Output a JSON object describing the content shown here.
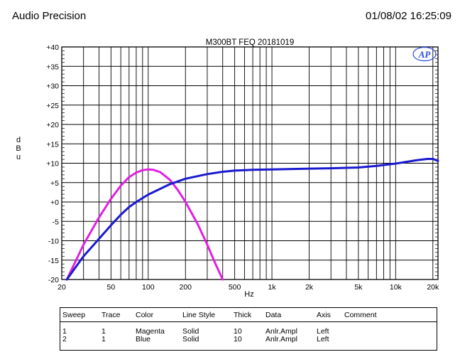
{
  "header": {
    "left": "Audio Precision",
    "right": "01/08/02 16:25:09"
  },
  "chart_data": {
    "type": "line",
    "title": "M300BT  FEQ  20181019",
    "xlabel": "Hz",
    "ylabel": "dBu",
    "x_scale": "log",
    "xlim": [
      20,
      22000
    ],
    "ylim": [
      -20,
      40
    ],
    "grid": true,
    "logo_text": "AP",
    "x_ticks": [
      {
        "value": 20,
        "label": "20"
      },
      {
        "value": 50,
        "label": "50"
      },
      {
        "value": 100,
        "label": "100"
      },
      {
        "value": 200,
        "label": "200"
      },
      {
        "value": 500,
        "label": "500"
      },
      {
        "value": 1000,
        "label": "1k"
      },
      {
        "value": 2000,
        "label": "2k"
      },
      {
        "value": 5000,
        "label": "5k"
      },
      {
        "value": 10000,
        "label": "10k"
      },
      {
        "value": 20000,
        "label": "20k"
      }
    ],
    "x_grid": [
      30,
      40,
      50,
      60,
      70,
      80,
      90,
      100,
      200,
      300,
      400,
      500,
      600,
      700,
      800,
      900,
      1000,
      2000,
      3000,
      4000,
      5000,
      6000,
      7000,
      8000,
      9000,
      10000,
      20000
    ],
    "y_ticks": [
      {
        "value": 40,
        "label": "+40"
      },
      {
        "value": 35,
        "label": "+35"
      },
      {
        "value": 30,
        "label": "+30"
      },
      {
        "value": 25,
        "label": "+25"
      },
      {
        "value": 20,
        "label": "+20"
      },
      {
        "value": 15,
        "label": "+15"
      },
      {
        "value": 10,
        "label": "+10"
      },
      {
        "value": 5,
        "label": "+5"
      },
      {
        "value": 0,
        "label": "+0"
      },
      {
        "value": -5,
        "label": "-5"
      },
      {
        "value": -10,
        "label": "-10"
      },
      {
        "value": -15,
        "label": "-15"
      },
      {
        "value": -20,
        "label": "-20"
      }
    ],
    "series": [
      {
        "color": "#e020e0",
        "points": [
          [
            22,
            -20
          ],
          [
            30,
            -11
          ],
          [
            40,
            -4
          ],
          [
            50,
            0.8
          ],
          [
            60,
            4.2
          ],
          [
            70,
            6.4
          ],
          [
            80,
            7.6
          ],
          [
            90,
            8.2
          ],
          [
            100,
            8.4
          ],
          [
            110,
            8.3
          ],
          [
            125,
            7.7
          ],
          [
            150,
            5.7
          ],
          [
            175,
            2.9
          ],
          [
            200,
            0
          ],
          [
            250,
            -5.6
          ],
          [
            300,
            -11
          ],
          [
            350,
            -16
          ],
          [
            400,
            -20
          ]
        ]
      },
      {
        "color": "#1a1ad0",
        "points": [
          [
            22,
            -20
          ],
          [
            25,
            -17.5
          ],
          [
            30,
            -14
          ],
          [
            40,
            -9.5
          ],
          [
            50,
            -6
          ],
          [
            60,
            -3.3
          ],
          [
            70,
            -1.3
          ],
          [
            80,
            0
          ],
          [
            100,
            1.9
          ],
          [
            125,
            3.4
          ],
          [
            150,
            4.6
          ],
          [
            200,
            6
          ],
          [
            300,
            7.2
          ],
          [
            400,
            7.8
          ],
          [
            500,
            8.1
          ],
          [
            700,
            8.3
          ],
          [
            1000,
            8.4
          ],
          [
            2000,
            8.6
          ],
          [
            3000,
            8.7
          ],
          [
            5000,
            8.9
          ],
          [
            7000,
            9.3
          ],
          [
            10000,
            9.9
          ],
          [
            15000,
            10.8
          ],
          [
            18000,
            11.1
          ],
          [
            20000,
            11.1
          ],
          [
            22000,
            10.6
          ]
        ]
      }
    ]
  },
  "legend": {
    "headers": [
      "Sweep",
      "Trace",
      "Color",
      "Line Style",
      "Thick",
      "Data",
      "Axis",
      "Comment"
    ],
    "rows": [
      [
        "1",
        "1",
        "Magenta",
        "Solid",
        "10",
        "Anlr.Ampl",
        "Left",
        ""
      ],
      [
        "2",
        "1",
        "Blue",
        "Solid",
        "10",
        "Anlr.Ampl",
        "Left",
        ""
      ]
    ]
  }
}
